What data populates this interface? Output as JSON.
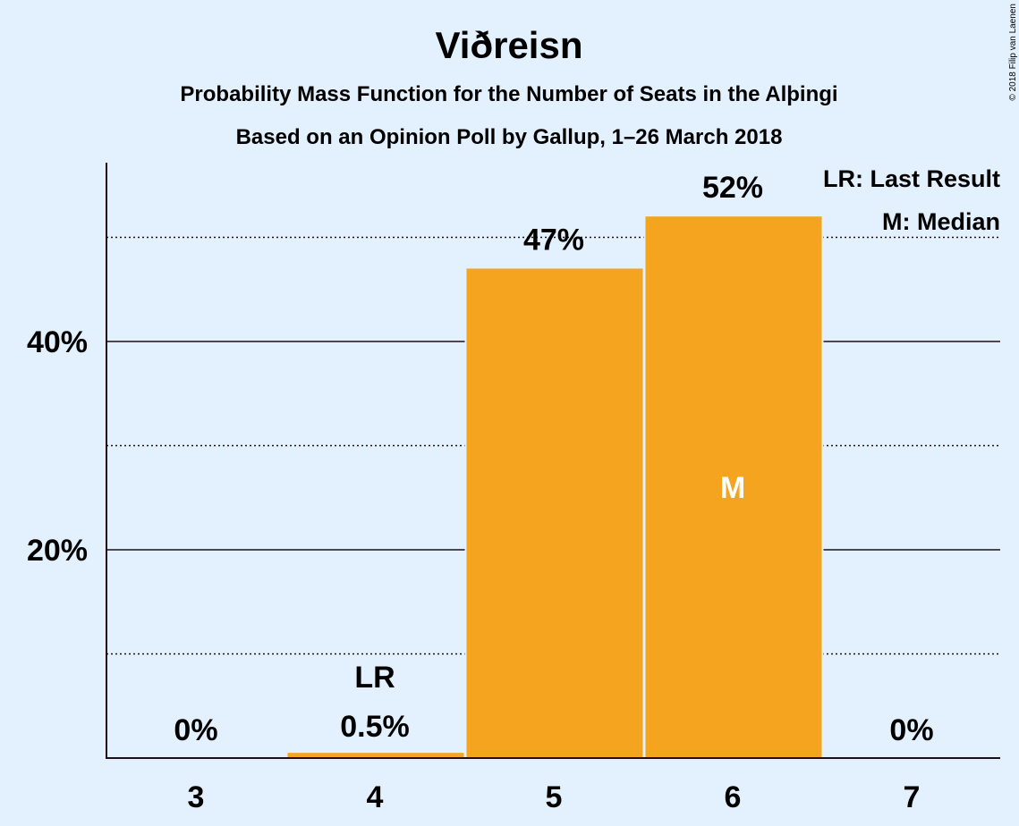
{
  "chart_data": {
    "type": "bar",
    "title": "Viðreisn",
    "subtitle": "Probability Mass Function for the Number of Seats in the Alþingi",
    "subtitle2": "Based on an Opinion Poll by Gallup, 1–26 March 2018",
    "categories": [
      "3",
      "4",
      "5",
      "6",
      "7"
    ],
    "values": [
      0,
      0.5,
      47,
      52,
      0
    ],
    "value_labels": [
      "0%",
      "0.5%",
      "47%",
      "52%",
      "0%"
    ],
    "ylim": [
      0,
      57
    ],
    "y_ticks": [
      {
        "value": 20,
        "label": "20%"
      },
      {
        "value": 40,
        "label": "40%"
      }
    ],
    "minor_gridlines": [
      10,
      30,
      50
    ],
    "last_result": {
      "category": "4",
      "label": "LR"
    },
    "median": {
      "category": "6",
      "label": "M"
    },
    "legend": [
      "LR: Last Result",
      "M: Median"
    ],
    "legend_position": "top-right",
    "bar_color": "#f4a41f",
    "copyright": "© 2018 Filip van Laenen"
  }
}
